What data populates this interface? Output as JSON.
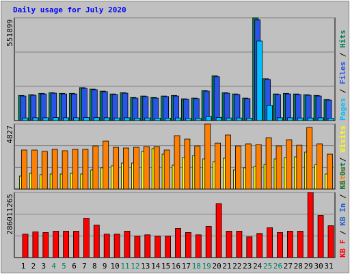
{
  "chart_data": [
    {
      "type": "bar",
      "title": "Daily usage for July 2020",
      "ylim": [
        0,
        551899
      ],
      "yticks": [
        551899
      ],
      "legend_separator": " / ",
      "series": [
        {
          "name": "Pages",
          "color": "#00c0ff",
          "values": [
            14000,
            15000,
            15000,
            16000,
            15000,
            15000,
            16000,
            16000,
            15000,
            14000,
            15000,
            13000,
            14000,
            13000,
            13000,
            14000,
            12000,
            12000,
            22000,
            17000,
            14000,
            14000,
            13000,
            427000,
            81000,
            15000,
            15000,
            14000,
            14000,
            15000,
            13000
          ]
        },
        {
          "name": "Files",
          "color": "#2855e8",
          "values": [
            132000,
            136000,
            143000,
            147000,
            143000,
            143000,
            173000,
            166000,
            155000,
            140000,
            147000,
            121000,
            129000,
            121000,
            129000,
            132000,
            114000,
            118000,
            158000,
            236000,
            147000,
            140000,
            118000,
            541000,
            221000,
            140000,
            143000,
            140000,
            136000,
            132000,
            110000
          ]
        },
        {
          "name": "Hits",
          "color": "#00805c",
          "values": [
            135000,
            139000,
            146000,
            150000,
            146000,
            146000,
            177000,
            169000,
            158000,
            143000,
            150000,
            124000,
            132000,
            124000,
            132000,
            135000,
            117000,
            121000,
            161000,
            240000,
            150000,
            143000,
            121000,
            551899,
            225000,
            143000,
            146000,
            143000,
            139000,
            135000,
            113000
          ]
        }
      ]
    },
    {
      "type": "bar",
      "ylim": [
        0,
        4827
      ],
      "yticks": [
        4827
      ],
      "legend_separator": " / ",
      "series": [
        {
          "name": "Sites",
          "color": "#ff8000",
          "values": [
            2896,
            2896,
            2794,
            2946,
            2845,
            2946,
            2946,
            3200,
            3556,
            3099,
            3048,
            3099,
            3150,
            3150,
            2896,
            3962,
            3708,
            3200,
            4827,
            3404,
            4013,
            3200,
            3353,
            3302,
            3810,
            3200,
            3658,
            3251,
            4573,
            3353,
            2591
          ]
        },
        {
          "name": "Visits",
          "color": "#ffff00",
          "values": [
            965,
            1168,
            1067,
            1118,
            1118,
            1168,
            1118,
            1422,
            1575,
            1727,
            1930,
            1930,
            2794,
            2997,
            2591,
            1778,
            2337,
            2489,
            2235,
            2032,
            2286,
            1422,
            1575,
            1676,
            1829,
            2235,
            2337,
            2388,
            2743,
            1829,
            1118
          ]
        }
      ]
    },
    {
      "type": "bar",
      "ylim": [
        0,
        286011265
      ],
      "yticks": [
        286011265
      ],
      "legend_separator": " / ",
      "categories": [
        "1",
        "2",
        "3",
        "4",
        "5",
        "6",
        "7",
        "8",
        "9",
        "10",
        "11",
        "12",
        "13",
        "14",
        "15",
        "16",
        "17",
        "18",
        "19",
        "20",
        "21",
        "22",
        "23",
        "24",
        "25",
        "26",
        "27",
        "28",
        "29",
        "30",
        "31"
      ],
      "category_colors": [
        "#000000",
        "#000000",
        "#000000",
        "#00805c",
        "#00805c",
        "#000000",
        "#000000",
        "#000000",
        "#000000",
        "#000000",
        "#00805c",
        "#00805c",
        "#000000",
        "#000000",
        "#000000",
        "#000000",
        "#000000",
        "#00805c",
        "#00805c",
        "#000000",
        "#000000",
        "#000000",
        "#000000",
        "#000000",
        "#00805c",
        "#00805c",
        "#000000",
        "#000000",
        "#000000",
        "#000000",
        "#000000"
      ],
      "series": [
        {
          "name": "KB F",
          "color": "#ff0000",
          "values": [
            103000000,
            113000000,
            110000000,
            116000000,
            116000000,
            116000000,
            173000000,
            143000000,
            103000000,
            103000000,
            116000000,
            94000000,
            100000000,
            94000000,
            94000000,
            128000000,
            110000000,
            100000000,
            137000000,
            237000000,
            116000000,
            116000000,
            91000000,
            106000000,
            131000000,
            110000000,
            116000000,
            116000000,
            286011265,
            185000000,
            140000000
          ]
        },
        {
          "name": "KB In",
          "color": "#1e64d0",
          "values": [
            null,
            null,
            null,
            null,
            null,
            null,
            null,
            null,
            null,
            null,
            null,
            null,
            null,
            null,
            null,
            null,
            null,
            null,
            null,
            null,
            null,
            null,
            null,
            null,
            null,
            null,
            null,
            null,
            null,
            null,
            null
          ]
        },
        {
          "name": "KB Out",
          "color": "#00805c",
          "values": [
            null,
            null,
            null,
            null,
            null,
            null,
            null,
            null,
            null,
            null,
            null,
            null,
            null,
            null,
            null,
            null,
            null,
            null,
            null,
            null,
            null,
            null,
            null,
            null,
            null,
            null,
            null,
            null,
            null,
            null,
            null
          ]
        }
      ]
    }
  ]
}
